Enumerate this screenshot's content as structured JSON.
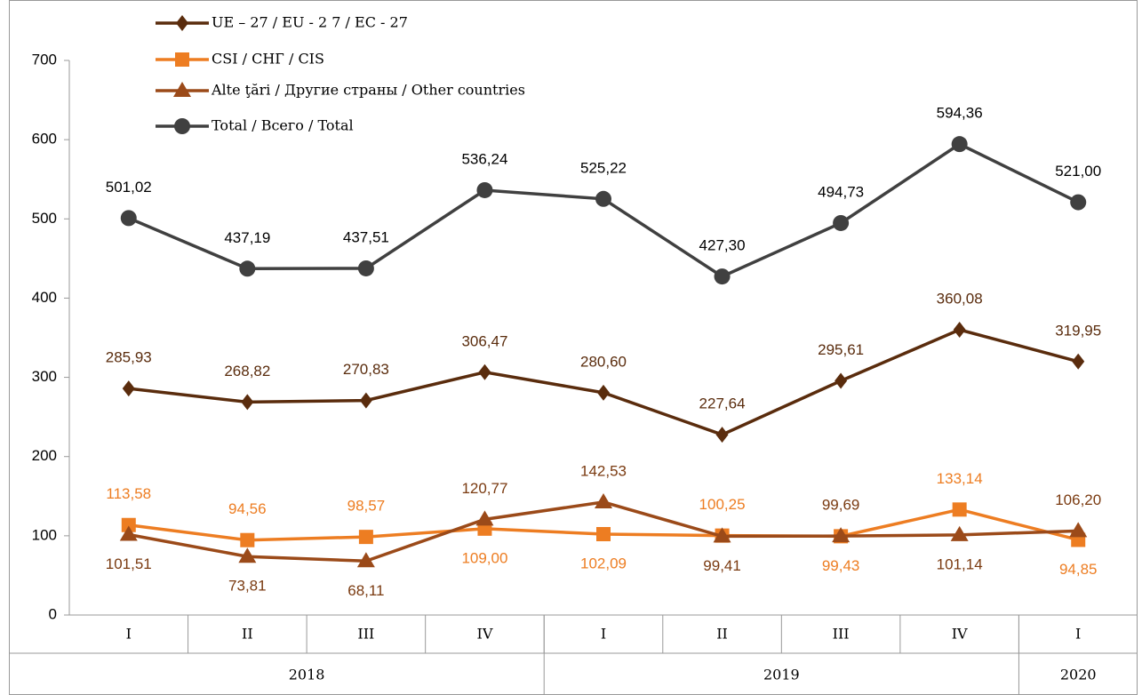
{
  "chart_data": {
    "type": "line",
    "categories": [
      "I",
      "II",
      "III",
      "IV",
      "I",
      "II",
      "III",
      "IV",
      "I"
    ],
    "year_groups": [
      {
        "name": "2018",
        "count": 4
      },
      {
        "name": "2019",
        "count": 4
      },
      {
        "name": "2020",
        "count": 1
      }
    ],
    "ylim": [
      0,
      700
    ],
    "yticks": [
      0,
      100,
      200,
      300,
      400,
      500,
      600,
      700
    ],
    "series": [
      {
        "name": "UE – 27 / EU - 2 7 / EC - 27",
        "color": "#5a2c0d",
        "marker": "diamond",
        "values": [
          285.93,
          268.82,
          270.83,
          306.47,
          280.6,
          227.64,
          295.61,
          360.08,
          319.95
        ],
        "value_labels": [
          "285,93",
          "268,82",
          "270,83",
          "306,47",
          "280,60",
          "227,64",
          "295,61",
          "360,08",
          "319,95"
        ]
      },
      {
        "name": "CSI / СНГ / CIS",
        "color": "#ed7d22",
        "marker": "square",
        "values": [
          113.58,
          94.56,
          98.57,
          109.0,
          102.09,
          100.25,
          99.43,
          133.14,
          94.85
        ],
        "value_labels": [
          "113,58",
          "94,56",
          "98,57",
          "109,00",
          "102,09",
          "100,25",
          "99,43",
          "133,14",
          "94,85"
        ]
      },
      {
        "name": "Alte ţări / Другие страны / Other countries",
        "color": "#9b4a19",
        "marker": "triangle",
        "values": [
          101.51,
          73.81,
          68.11,
          120.77,
          142.53,
          99.41,
          99.69,
          101.14,
          106.2
        ],
        "value_labels": [
          "101,51",
          "73,81",
          "68,11",
          "120,77",
          "142,53",
          "99,41",
          "99,69",
          "101,14",
          "106,20"
        ]
      },
      {
        "name": "Total / Всего / Total",
        "color": "#404040",
        "marker": "circle",
        "values": [
          501.02,
          437.19,
          437.51,
          536.24,
          525.22,
          427.3,
          494.73,
          594.36,
          521.0
        ],
        "value_labels": [
          "501,02",
          "437,19",
          "437,51",
          "536,24",
          "525,22",
          "427,30",
          "494,73",
          "594,36",
          "521,00"
        ]
      }
    ]
  }
}
